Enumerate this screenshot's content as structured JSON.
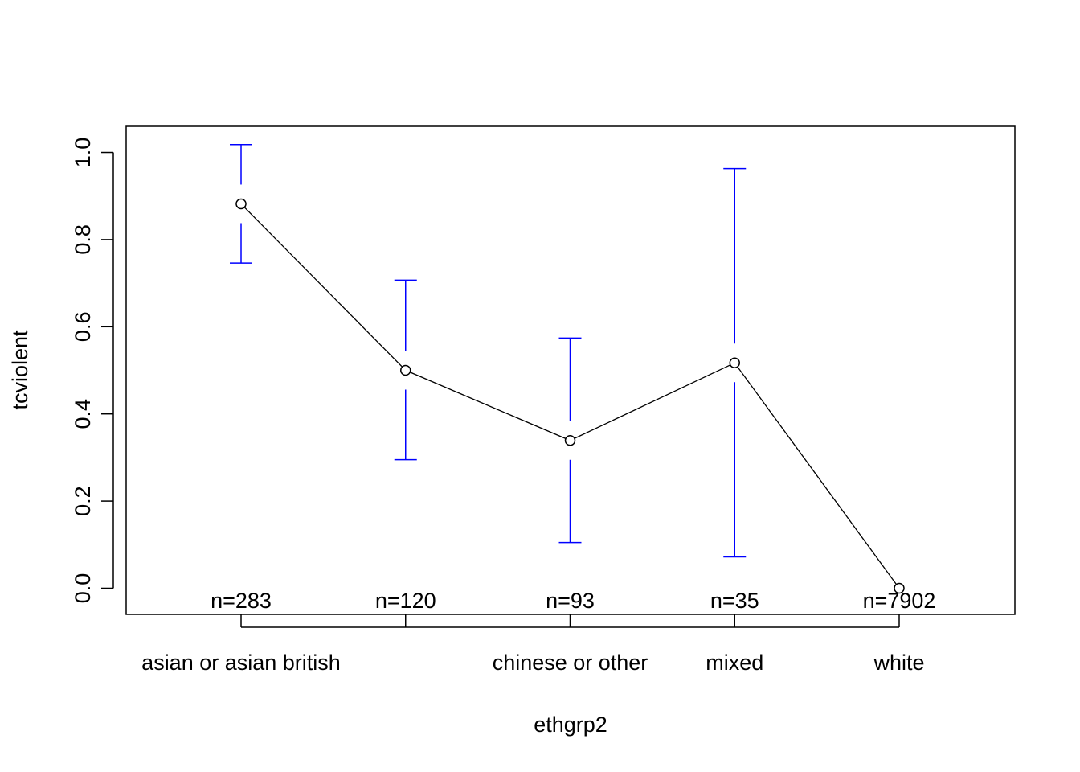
{
  "chart_data": {
    "type": "line",
    "title": "",
    "xlabel": "ethgrp2",
    "ylabel": "tcviolent",
    "categories": [
      "asian or asian british",
      "",
      "chinese or other",
      "mixed",
      "white"
    ],
    "values": [
      0.882,
      0.5,
      0.339,
      0.517,
      0.0
    ],
    "error_bars": {
      "upper": [
        1.018,
        0.707,
        0.574,
        0.963,
        null
      ],
      "lower": [
        0.746,
        0.295,
        0.105,
        0.072,
        null
      ],
      "color": "#0000ff"
    },
    "counts": [
      "n=283",
      "n=120",
      "n=93",
      "n=35",
      "n=7902"
    ],
    "yticks": [
      "0.0",
      "0.2",
      "0.4",
      "0.6",
      "0.8",
      "1.0"
    ],
    "ylim": [
      -0.06,
      1.06
    ],
    "grid": false,
    "line_color": "#000000",
    "marker": "open-circle"
  }
}
